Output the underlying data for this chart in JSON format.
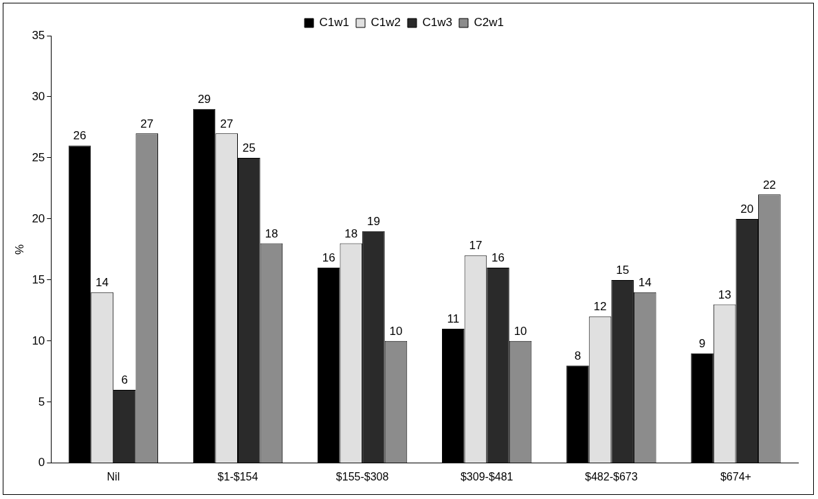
{
  "chart_data": {
    "type": "bar",
    "ylabel": "%",
    "categories": [
      "Nil",
      "$1-$154",
      "$155-$308",
      "$309-$481",
      "$482-$673",
      "$674+"
    ],
    "series": [
      {
        "name": "C1w1",
        "color": "#000000",
        "values": [
          26,
          29,
          16,
          11,
          8,
          9
        ]
      },
      {
        "name": "C1w2",
        "color": "#e0e0e0",
        "values": [
          14,
          27,
          18,
          17,
          12,
          13
        ]
      },
      {
        "name": "C1w3",
        "color": "#2a2a2a",
        "values": [
          6,
          25,
          19,
          16,
          15,
          20
        ]
      },
      {
        "name": "C2w1",
        "color": "#8c8c8c",
        "values": [
          27,
          18,
          10,
          10,
          14,
          22
        ]
      }
    ],
    "ylim": [
      0,
      35
    ],
    "yticks": [
      0,
      5,
      10,
      15,
      20,
      25,
      30,
      35
    ],
    "grid": false,
    "legend": "top",
    "data_labels": true
  }
}
